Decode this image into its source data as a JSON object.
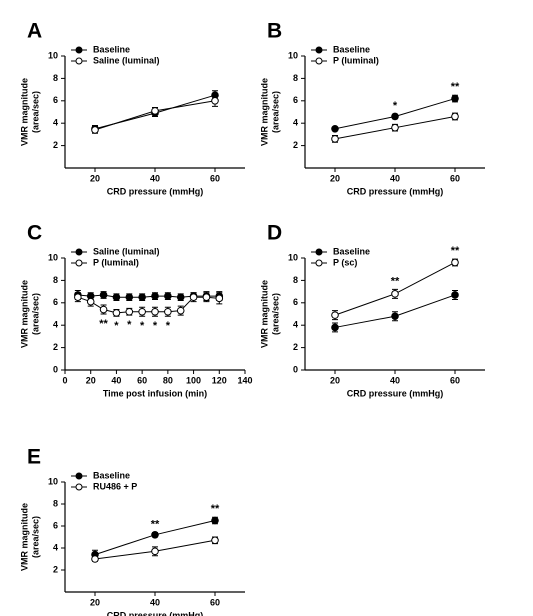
{
  "chart_data": [
    {
      "type": "line",
      "panel": "A",
      "xlabel": "CRD pressure (mmHg)",
      "ylabel": [
        "VMR magnitude",
        "(area/sec)"
      ],
      "x": [
        20,
        40,
        60
      ],
      "xlim": [
        10,
        70
      ],
      "xticks": [
        20,
        40,
        60
      ],
      "ylim": [
        0,
        10
      ],
      "yticks": [
        2,
        4,
        6,
        8,
        10
      ],
      "legend": "upper left",
      "series": [
        {
          "name": "Baseline",
          "color": "#000000",
          "marker_fill": "#000000",
          "values": [
            3.5,
            4.9,
            6.5
          ],
          "errors": [
            0.3,
            0.3,
            0.4
          ]
        },
        {
          "name": "Saline (luminal)",
          "color": "#000000",
          "marker_fill": "#ffffff",
          "values": [
            3.4,
            5.1,
            6.0
          ],
          "errors": [
            0.3,
            0.3,
            0.5
          ]
        }
      ],
      "annotations": []
    },
    {
      "type": "line",
      "panel": "B",
      "xlabel": "CRD pressure (mmHg)",
      "ylabel": [
        "VMR magnitude",
        "(area/sec)"
      ],
      "x": [
        20,
        40,
        60
      ],
      "xlim": [
        10,
        70
      ],
      "xticks": [
        20,
        40,
        60
      ],
      "ylim": [
        0,
        10
      ],
      "yticks": [
        2,
        4,
        6,
        8,
        10
      ],
      "legend": "upper left",
      "series": [
        {
          "name": "Baseline",
          "color": "#000000",
          "marker_fill": "#000000",
          "values": [
            3.5,
            4.6,
            6.2
          ],
          "errors": [
            0.1,
            0.2,
            0.3
          ]
        },
        {
          "name": "P (luminal)",
          "color": "#000000",
          "marker_fill": "#ffffff",
          "values": [
            2.6,
            3.6,
            4.6
          ],
          "errors": [
            0.3,
            0.3,
            0.3
          ]
        }
      ],
      "annotations": [
        {
          "x": 40,
          "text": "*"
        },
        {
          "x": 60,
          "text": "**"
        }
      ]
    },
    {
      "type": "line",
      "panel": "C",
      "xlabel": "Time post infusion (min)",
      "ylabel": [
        "VMR magnitude",
        "(area/sec)"
      ],
      "x": [
        10,
        20,
        30,
        40,
        50,
        60,
        70,
        80,
        90,
        100,
        110,
        120
      ],
      "xlim": [
        0,
        140
      ],
      "xticks": [
        0,
        20,
        40,
        60,
        80,
        100,
        120,
        140
      ],
      "ylim": [
        0,
        10
      ],
      "yticks": [
        0,
        2,
        4,
        6,
        8,
        10
      ],
      "legend": "upper left",
      "series": [
        {
          "name": "Saline (luminal)",
          "color": "#000000",
          "marker_fill": "#000000",
          "values": [
            6.7,
            6.6,
            6.7,
            6.5,
            6.5,
            6.5,
            6.6,
            6.6,
            6.5,
            6.6,
            6.6,
            6.6
          ],
          "errors": [
            0.4,
            0.3,
            0.3,
            0.3,
            0.3,
            0.3,
            0.3,
            0.3,
            0.3,
            0.3,
            0.4,
            0.4
          ]
        },
        {
          "name": "P (luminal)",
          "color": "#000000",
          "marker_fill": "#ffffff",
          "values": [
            6.5,
            6.1,
            5.4,
            5.1,
            5.2,
            5.2,
            5.2,
            5.2,
            5.3,
            6.5,
            6.5,
            6.4
          ],
          "errors": [
            0.4,
            0.4,
            0.4,
            0.3,
            0.3,
            0.4,
            0.4,
            0.4,
            0.4,
            0.4,
            0.4,
            0.5
          ]
        }
      ],
      "annotations": [
        {
          "x": 30,
          "text": "**"
        },
        {
          "x": 40,
          "text": "*"
        },
        {
          "x": 50,
          "text": "*"
        },
        {
          "x": 60,
          "text": "*"
        },
        {
          "x": 70,
          "text": "*"
        },
        {
          "x": 80,
          "text": "*"
        }
      ]
    },
    {
      "type": "line",
      "panel": "D",
      "xlabel": "CRD pressure (mmHg)",
      "ylabel": [
        "VMR magnitude",
        "(area/sec)"
      ],
      "x": [
        20,
        40,
        60
      ],
      "xlim": [
        10,
        70
      ],
      "xticks": [
        20,
        40,
        60
      ],
      "ylim": [
        0,
        10
      ],
      "yticks": [
        0,
        2,
        4,
        6,
        8,
        10
      ],
      "legend": "upper left",
      "series": [
        {
          "name": "Baseline",
          "color": "#000000",
          "marker_fill": "#000000",
          "values": [
            3.8,
            4.8,
            6.7
          ],
          "errors": [
            0.4,
            0.4,
            0.4
          ]
        },
        {
          "name": "P (sc)",
          "color": "#000000",
          "marker_fill": "#ffffff",
          "values": [
            4.9,
            6.8,
            9.6
          ],
          "errors": [
            0.4,
            0.4,
            0.3
          ]
        }
      ],
      "annotations": [
        {
          "x": 40,
          "text": "**"
        },
        {
          "x": 60,
          "text": "**"
        }
      ]
    },
    {
      "type": "line",
      "panel": "E",
      "xlabel": "CRD pressure (mmHg)",
      "ylabel": [
        "VMR magnitude",
        "(area/sec)"
      ],
      "x": [
        20,
        40,
        60
      ],
      "xlim": [
        10,
        70
      ],
      "xticks": [
        20,
        40,
        60
      ],
      "ylim": [
        0,
        10
      ],
      "yticks": [
        2,
        4,
        6,
        8,
        10
      ],
      "legend": "upper left",
      "series": [
        {
          "name": "Baseline",
          "color": "#000000",
          "marker_fill": "#000000",
          "values": [
            3.4,
            5.2,
            6.5
          ],
          "errors": [
            0.4,
            0.2,
            0.3
          ]
        },
        {
          "name": "RU486 + P",
          "color": "#000000",
          "marker_fill": "#ffffff",
          "values": [
            3.0,
            3.7,
            4.7
          ],
          "errors": [
            0.2,
            0.4,
            0.3
          ]
        }
      ],
      "annotations": [
        {
          "x": 40,
          "text": "**"
        },
        {
          "x": 60,
          "text": "**"
        }
      ]
    }
  ]
}
